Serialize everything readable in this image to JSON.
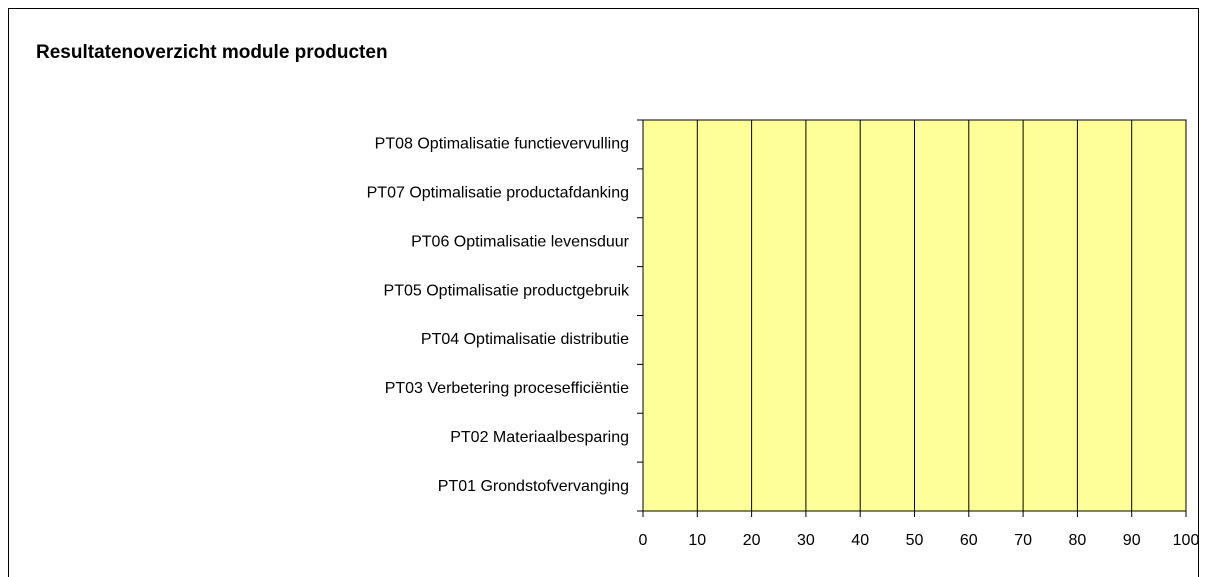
{
  "chart_data": {
    "type": "hbar",
    "title": "Resultatenoverzicht module producten",
    "categories": [
      "PT01 Grondstofvervanging",
      "PT02 Materiaalbesparing",
      "PT03 Verbetering procesefficiëntie",
      "PT04 Optimalisatie distributie",
      "PT05 Optimalisatie productgebruik",
      "PT06 Optimalisatie levensduur",
      "PT07 Optimalisatie productafdanking",
      "PT08 Optimalisatie functievervulling"
    ],
    "values": [
      0,
      0,
      0,
      0,
      0,
      0,
      0,
      0
    ],
    "color": "#9999ff",
    "plot_background": "#ffff99",
    "xlim": [
      0,
      100
    ],
    "xticks": [
      0,
      10,
      20,
      30,
      40,
      50,
      60,
      70,
      80,
      90,
      100
    ],
    "grid": true
  }
}
